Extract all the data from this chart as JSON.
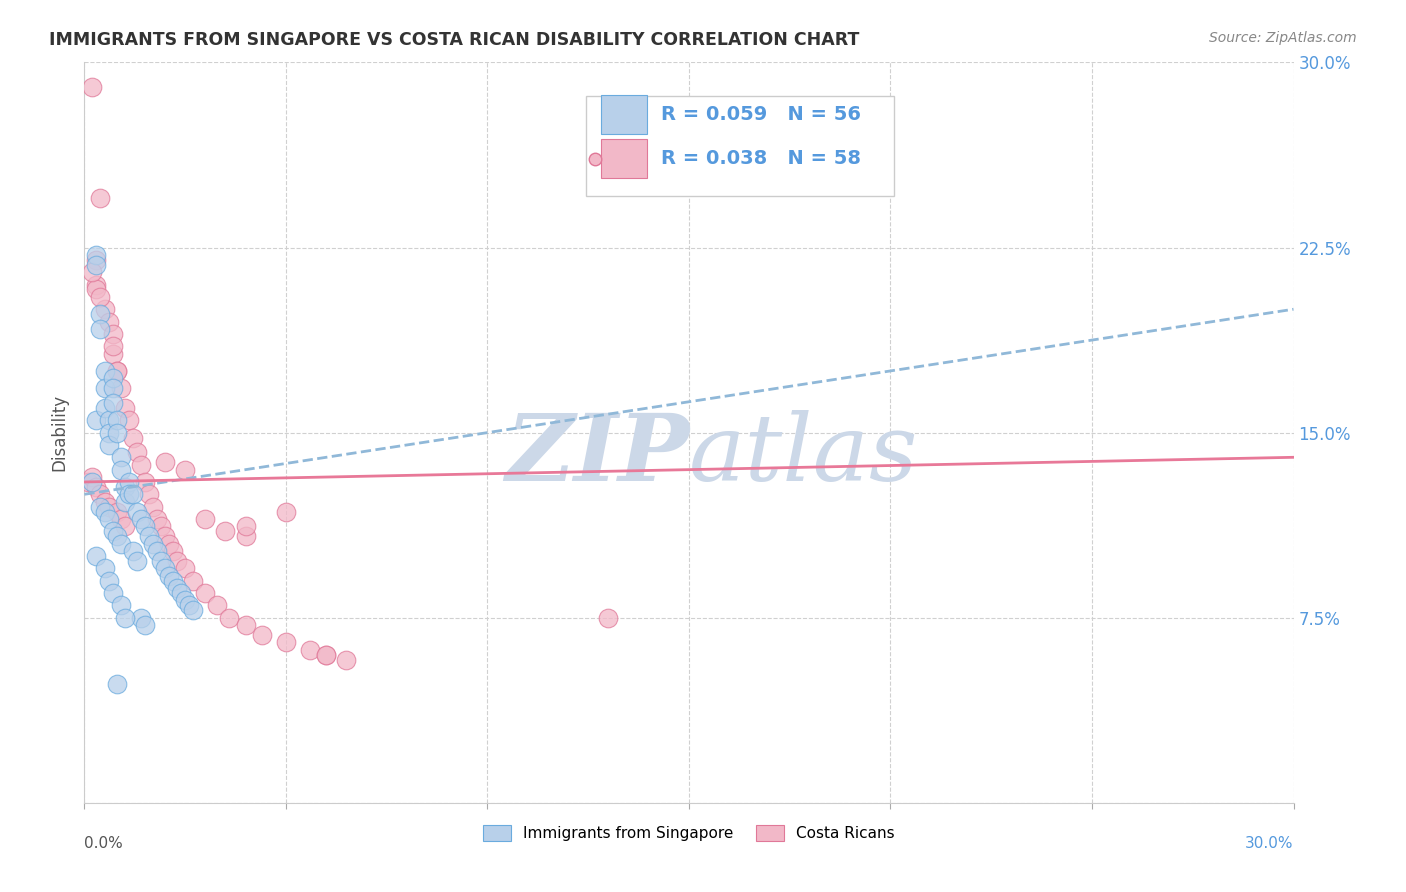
{
  "title": "IMMIGRANTS FROM SINGAPORE VS COSTA RICAN DISABILITY CORRELATION CHART",
  "source": "Source: ZipAtlas.com",
  "ylabel": "Disability",
  "legend_label_blue": "Immigrants from Singapore",
  "legend_label_pink": "Costa Ricans",
  "R_blue": 0.059,
  "N_blue": 56,
  "R_pink": 0.038,
  "N_pink": 58,
  "color_blue_fill": "#b8d0ea",
  "color_blue_edge": "#6aabde",
  "color_pink_fill": "#f2b8c8",
  "color_pink_edge": "#e07898",
  "trendline_blue_color": "#90b8d8",
  "trendline_pink_color": "#e87898",
  "watermark_color": "#ccd8e8",
  "blue_x": [
    0.002,
    0.003,
    0.003,
    0.003,
    0.004,
    0.004,
    0.004,
    0.005,
    0.005,
    0.005,
    0.005,
    0.006,
    0.006,
    0.006,
    0.006,
    0.007,
    0.007,
    0.007,
    0.007,
    0.008,
    0.008,
    0.008,
    0.009,
    0.009,
    0.009,
    0.01,
    0.01,
    0.011,
    0.011,
    0.012,
    0.012,
    0.013,
    0.013,
    0.014,
    0.015,
    0.016,
    0.017,
    0.018,
    0.019,
    0.02,
    0.021,
    0.022,
    0.023,
    0.024,
    0.025,
    0.026,
    0.027,
    0.014,
    0.015,
    0.003,
    0.005,
    0.006,
    0.007,
    0.009,
    0.01,
    0.008
  ],
  "blue_y": [
    0.13,
    0.222,
    0.218,
    0.155,
    0.198,
    0.192,
    0.12,
    0.175,
    0.168,
    0.16,
    0.118,
    0.155,
    0.15,
    0.145,
    0.115,
    0.172,
    0.168,
    0.162,
    0.11,
    0.155,
    0.15,
    0.108,
    0.14,
    0.135,
    0.105,
    0.128,
    0.122,
    0.13,
    0.125,
    0.125,
    0.102,
    0.118,
    0.098,
    0.115,
    0.112,
    0.108,
    0.105,
    0.102,
    0.098,
    0.095,
    0.092,
    0.09,
    0.087,
    0.085,
    0.082,
    0.08,
    0.078,
    0.075,
    0.072,
    0.1,
    0.095,
    0.09,
    0.085,
    0.08,
    0.075,
    0.048
  ],
  "pink_x": [
    0.001,
    0.002,
    0.002,
    0.003,
    0.003,
    0.003,
    0.004,
    0.004,
    0.005,
    0.005,
    0.006,
    0.006,
    0.007,
    0.007,
    0.008,
    0.008,
    0.009,
    0.009,
    0.01,
    0.01,
    0.011,
    0.012,
    0.013,
    0.014,
    0.015,
    0.016,
    0.017,
    0.018,
    0.019,
    0.02,
    0.021,
    0.022,
    0.023,
    0.025,
    0.027,
    0.03,
    0.033,
    0.036,
    0.04,
    0.044,
    0.05,
    0.056,
    0.06,
    0.065,
    0.03,
    0.035,
    0.04,
    0.05,
    0.13,
    0.02,
    0.025,
    0.04,
    0.06,
    0.003,
    0.002,
    0.004,
    0.007,
    0.008
  ],
  "pink_y": [
    0.13,
    0.29,
    0.132,
    0.22,
    0.21,
    0.128,
    0.245,
    0.125,
    0.2,
    0.122,
    0.195,
    0.12,
    0.19,
    0.182,
    0.175,
    0.118,
    0.168,
    0.115,
    0.16,
    0.112,
    0.155,
    0.148,
    0.142,
    0.137,
    0.13,
    0.125,
    0.12,
    0.115,
    0.112,
    0.108,
    0.105,
    0.102,
    0.098,
    0.095,
    0.09,
    0.085,
    0.08,
    0.075,
    0.072,
    0.068,
    0.065,
    0.062,
    0.06,
    0.058,
    0.115,
    0.11,
    0.108,
    0.118,
    0.075,
    0.138,
    0.135,
    0.112,
    0.06,
    0.208,
    0.215,
    0.205,
    0.185,
    0.175
  ],
  "blue_trend_x0": 0.0,
  "blue_trend_x1": 0.3,
  "blue_trend_y0": 0.125,
  "blue_trend_y1": 0.2,
  "pink_trend_x0": 0.0,
  "pink_trend_x1": 0.3,
  "pink_trend_y0": 0.13,
  "pink_trend_y1": 0.14,
  "xlim": [
    0.0,
    0.3
  ],
  "ylim": [
    0.0,
    0.3
  ],
  "y_tick_positions": [
    0.0,
    0.075,
    0.15,
    0.225,
    0.3
  ],
  "y_tick_labels_right": [
    "",
    "7.5%",
    "15.0%",
    "22.5%",
    "30.0%"
  ],
  "x_tick_positions": [
    0.0,
    0.05,
    0.1,
    0.15,
    0.2,
    0.25,
    0.3
  ]
}
